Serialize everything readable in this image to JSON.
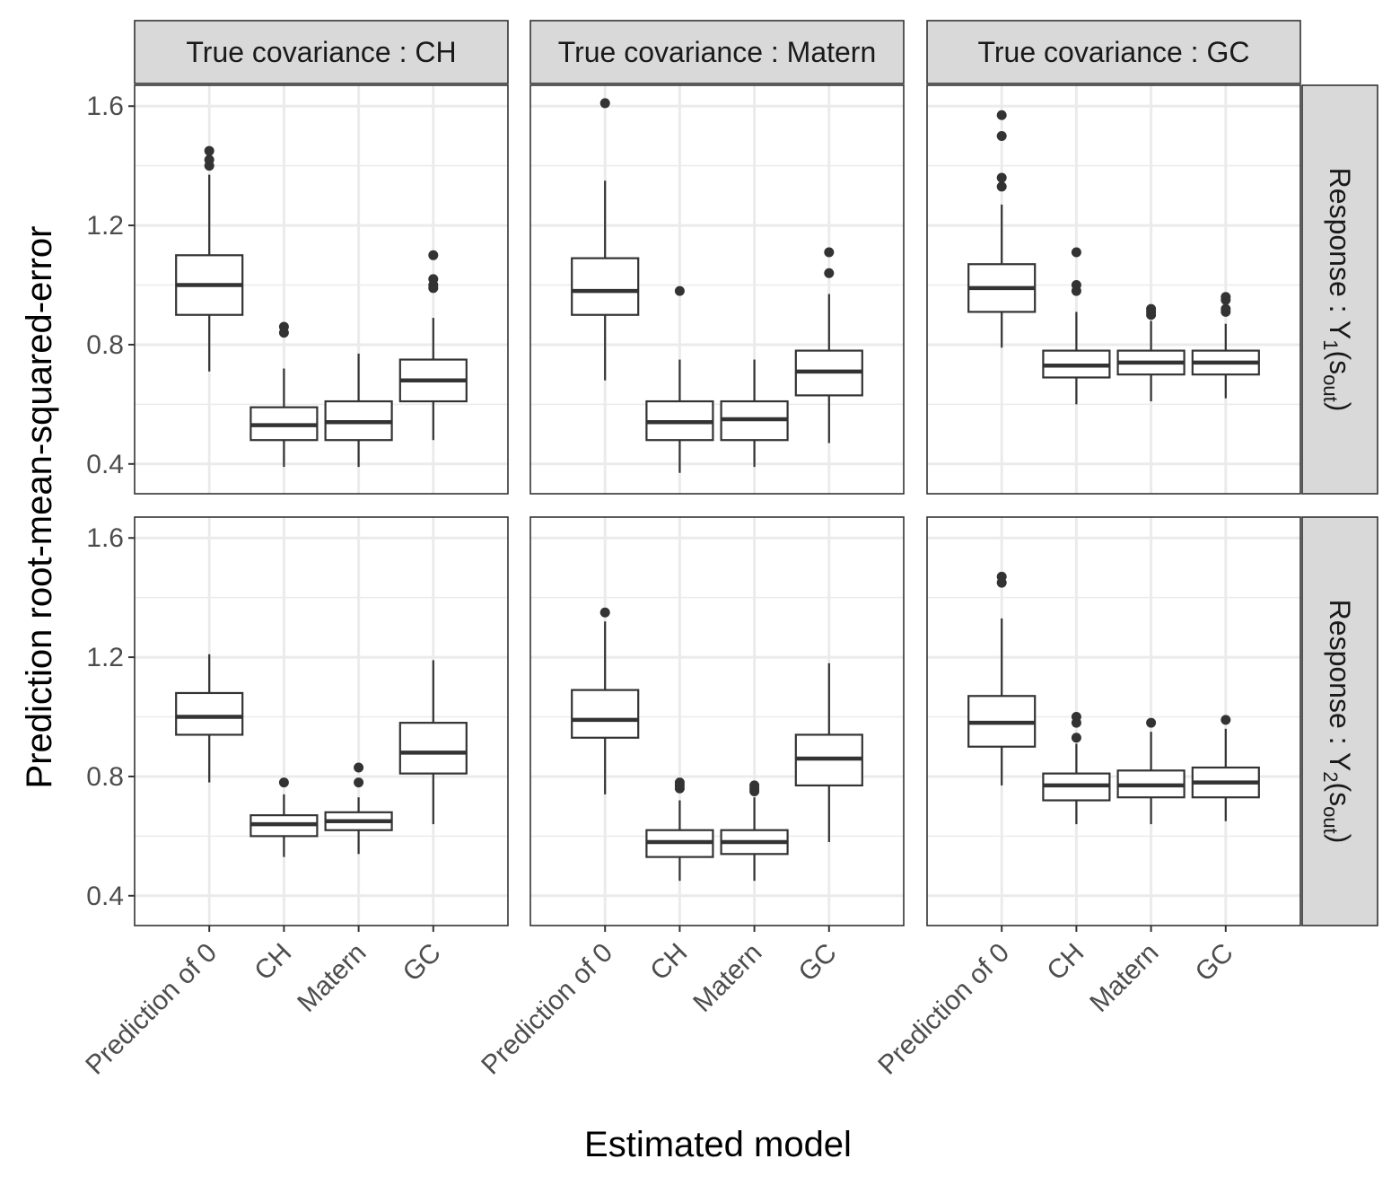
{
  "chart_data": {
    "type": "boxplot",
    "xlabel": "Estimated model",
    "ylabel": "Prediction root-mean-squared-error",
    "categories": [
      "Prediction of 0",
      "CH",
      "Matern",
      "GC"
    ],
    "yticks": [
      "0.4",
      "0.8",
      "1.2",
      "1.6"
    ],
    "ylim": [
      0.3,
      1.67
    ],
    "col_strips": [
      "True covariance : CH",
      "True covariance : Matern",
      "True covariance : GC"
    ],
    "row_strips": [
      {
        "prefix": "Response : ",
        "var": "Y",
        "sub": "1",
        "arg": "s",
        "argsub": "out"
      },
      {
        "prefix": "Response : ",
        "var": "Y",
        "sub": "2",
        "arg": "s",
        "argsub": "out"
      }
    ],
    "panels": [
      {
        "row": 0,
        "col": 0,
        "boxes": [
          {
            "q1": 0.9,
            "median": 1.0,
            "q3": 1.1,
            "lo": 0.71,
            "hi": 1.37,
            "outliers": [
              1.4,
              1.42,
              1.45
            ]
          },
          {
            "q1": 0.48,
            "median": 0.53,
            "q3": 0.59,
            "lo": 0.39,
            "hi": 0.72,
            "outliers": [
              0.84,
              0.86
            ]
          },
          {
            "q1": 0.48,
            "median": 0.54,
            "q3": 0.61,
            "lo": 0.39,
            "hi": 0.77,
            "outliers": []
          },
          {
            "q1": 0.61,
            "median": 0.68,
            "q3": 0.75,
            "lo": 0.48,
            "hi": 0.89,
            "outliers": [
              0.99,
              1.0,
              1.02,
              1.1
            ]
          }
        ]
      },
      {
        "row": 0,
        "col": 1,
        "boxes": [
          {
            "q1": 0.9,
            "median": 0.98,
            "q3": 1.09,
            "lo": 0.68,
            "hi": 1.35,
            "outliers": [
              1.61
            ]
          },
          {
            "q1": 0.48,
            "median": 0.54,
            "q3": 0.61,
            "lo": 0.37,
            "hi": 0.75,
            "outliers": [
              0.98
            ]
          },
          {
            "q1": 0.48,
            "median": 0.55,
            "q3": 0.61,
            "lo": 0.39,
            "hi": 0.75,
            "outliers": []
          },
          {
            "q1": 0.63,
            "median": 0.71,
            "q3": 0.78,
            "lo": 0.47,
            "hi": 0.97,
            "outliers": [
              1.04,
              1.11
            ]
          }
        ]
      },
      {
        "row": 0,
        "col": 2,
        "boxes": [
          {
            "q1": 0.91,
            "median": 0.99,
            "q3": 1.07,
            "lo": 0.79,
            "hi": 1.27,
            "outliers": [
              1.33,
              1.36,
              1.5,
              1.57
            ]
          },
          {
            "q1": 0.69,
            "median": 0.73,
            "q3": 0.78,
            "lo": 0.6,
            "hi": 0.91,
            "outliers": [
              0.98,
              1.0,
              1.11
            ]
          },
          {
            "q1": 0.7,
            "median": 0.74,
            "q3": 0.78,
            "lo": 0.61,
            "hi": 0.88,
            "outliers": [
              0.9,
              0.91,
              0.92
            ]
          },
          {
            "q1": 0.7,
            "median": 0.74,
            "q3": 0.78,
            "lo": 0.62,
            "hi": 0.87,
            "outliers": [
              0.91,
              0.92,
              0.95,
              0.96
            ]
          }
        ]
      },
      {
        "row": 1,
        "col": 0,
        "boxes": [
          {
            "q1": 0.94,
            "median": 1.0,
            "q3": 1.08,
            "lo": 0.78,
            "hi": 1.21,
            "outliers": []
          },
          {
            "q1": 0.6,
            "median": 0.64,
            "q3": 0.67,
            "lo": 0.53,
            "hi": 0.74,
            "outliers": [
              0.78
            ]
          },
          {
            "q1": 0.62,
            "median": 0.65,
            "q3": 0.68,
            "lo": 0.54,
            "hi": 0.73,
            "outliers": [
              0.78,
              0.83
            ]
          },
          {
            "q1": 0.81,
            "median": 0.88,
            "q3": 0.98,
            "lo": 0.64,
            "hi": 1.19,
            "outliers": []
          }
        ]
      },
      {
        "row": 1,
        "col": 1,
        "boxes": [
          {
            "q1": 0.93,
            "median": 0.99,
            "q3": 1.09,
            "lo": 0.74,
            "hi": 1.32,
            "outliers": [
              1.35
            ]
          },
          {
            "q1": 0.53,
            "median": 0.58,
            "q3": 0.62,
            "lo": 0.45,
            "hi": 0.72,
            "outliers": [
              0.76,
              0.77,
              0.78
            ]
          },
          {
            "q1": 0.54,
            "median": 0.58,
            "q3": 0.62,
            "lo": 0.45,
            "hi": 0.73,
            "outliers": [
              0.75,
              0.76,
              0.77
            ]
          },
          {
            "q1": 0.77,
            "median": 0.86,
            "q3": 0.94,
            "lo": 0.58,
            "hi": 1.18,
            "outliers": []
          }
        ]
      },
      {
        "row": 1,
        "col": 2,
        "boxes": [
          {
            "q1": 0.9,
            "median": 0.98,
            "q3": 1.07,
            "lo": 0.77,
            "hi": 1.33,
            "outliers": [
              1.45,
              1.47
            ]
          },
          {
            "q1": 0.72,
            "median": 0.77,
            "q3": 0.81,
            "lo": 0.64,
            "hi": 0.91,
            "outliers": [
              0.93,
              0.98,
              1.0
            ]
          },
          {
            "q1": 0.73,
            "median": 0.77,
            "q3": 0.82,
            "lo": 0.64,
            "hi": 0.95,
            "outliers": [
              0.98
            ]
          },
          {
            "q1": 0.73,
            "median": 0.78,
            "q3": 0.83,
            "lo": 0.65,
            "hi": 0.96,
            "outliers": [
              0.99
            ]
          }
        ]
      }
    ]
  }
}
